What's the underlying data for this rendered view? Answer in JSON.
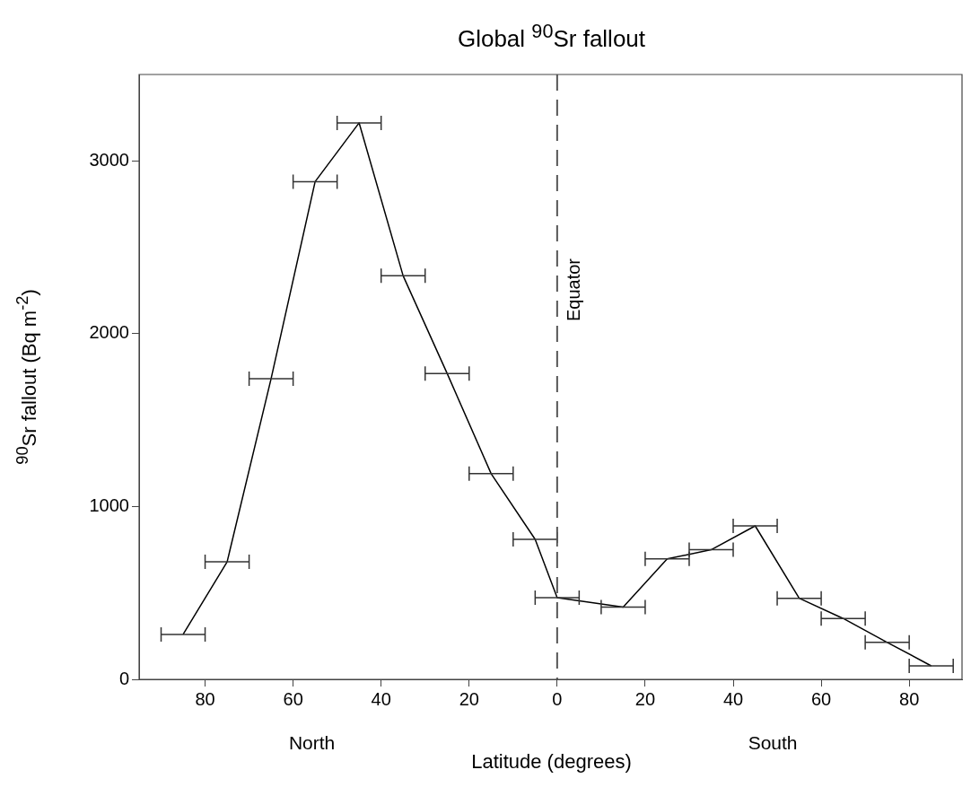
{
  "chart_data": {
    "type": "line",
    "title": "Global $^{90}$Sr fallout",
    "xlabel": "Latitude (degrees)",
    "ylabel": "$^{90}$Sr fallout (Bq m$^{-2}$)",
    "x": [
      -85,
      -75,
      -65,
      -55,
      -45,
      -35,
      -25,
      -15,
      -5,
      0,
      15,
      25,
      35,
      45,
      55,
      65,
      75,
      85
    ],
    "series": [
      {
        "color": "#000000",
        "values": [
          260,
          680,
          1740,
          2880,
          3220,
          2335,
          1770,
          1190,
          810,
          473,
          418,
          697,
          750,
          888,
          469,
          352,
          214,
          78
        ],
        "xerrors": [
          5,
          5,
          5,
          5,
          5,
          5,
          5,
          5,
          5,
          5,
          5,
          5,
          5,
          5,
          5,
          5,
          5,
          5
        ]
      }
    ],
    "xlim": [
      -95,
      92
    ],
    "xticks": [
      {
        "value": -80,
        "label": "80"
      },
      {
        "value": -60,
        "label": "60"
      },
      {
        "value": -40,
        "label": "40"
      },
      {
        "value": -20,
        "label": "20"
      },
      0,
      20,
      40,
      60,
      80
    ],
    "ylim": [
      0,
      3500
    ],
    "yticks": [
      0,
      1000,
      2000,
      3000
    ],
    "ref_lines": [
      {
        "axis": "x",
        "value": 0,
        "label": "Equator",
        "color": "#555555",
        "line_style": "dashed"
      }
    ],
    "annotations": [
      "North",
      "South"
    ],
    "grid": false,
    "legend": false,
    "marker": "none",
    "line_style": "solid"
  }
}
